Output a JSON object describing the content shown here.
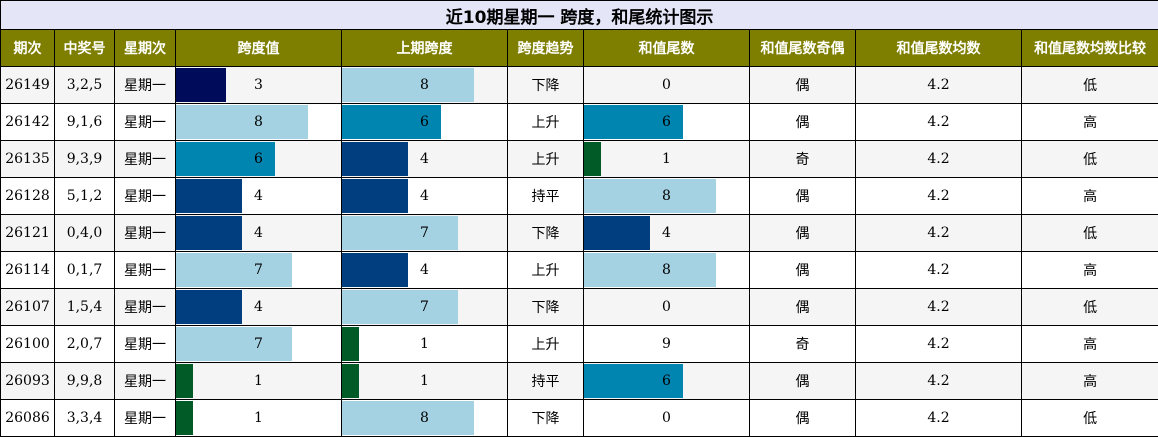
{
  "title": "近10期星期一 跨度，和尾统计图示",
  "headers": [
    "期次",
    "中奖号",
    "星期次",
    "跨度值",
    "上期跨度",
    "跨度趋势",
    "和值尾数",
    "和值尾数奇偶",
    "和值尾数均数",
    "和值尾数均数比较"
  ],
  "chart_data": {
    "type": "table",
    "title": "近10期星期一 跨度，和尾统计图示",
    "bar_scale_max": 10,
    "colors": {
      "header_bg": "#7e7e00",
      "title_bg": "#e4e6f8",
      "bar_by_value": {
        "1": "#005b26",
        "3": "#000c5a",
        "4": "#003e80",
        "6": "#0084b0",
        "7": "#a4d2e2",
        "8": "#a4d2e2"
      }
    },
    "rows": [
      {
        "issue": "26149",
        "numbers": "3,2,5",
        "weekday": "星期一",
        "span": 3,
        "prev_span": 8,
        "trend": "下降",
        "sum_tail": 0,
        "parity": "偶",
        "avg": "4.2",
        "compare": "低"
      },
      {
        "issue": "26142",
        "numbers": "9,1,6",
        "weekday": "星期一",
        "span": 8,
        "prev_span": 6,
        "trend": "上升",
        "sum_tail": 6,
        "parity": "偶",
        "avg": "4.2",
        "compare": "高"
      },
      {
        "issue": "26135",
        "numbers": "9,3,9",
        "weekday": "星期一",
        "span": 6,
        "prev_span": 4,
        "trend": "上升",
        "sum_tail": 1,
        "parity": "奇",
        "avg": "4.2",
        "compare": "低"
      },
      {
        "issue": "26128",
        "numbers": "5,1,2",
        "weekday": "星期一",
        "span": 4,
        "prev_span": 4,
        "trend": "持平",
        "sum_tail": 8,
        "parity": "偶",
        "avg": "4.2",
        "compare": "高"
      },
      {
        "issue": "26121",
        "numbers": "0,4,0",
        "weekday": "星期一",
        "span": 4,
        "prev_span": 7,
        "trend": "下降",
        "sum_tail": 4,
        "parity": "偶",
        "avg": "4.2",
        "compare": "低"
      },
      {
        "issue": "26114",
        "numbers": "0,1,7",
        "weekday": "星期一",
        "span": 7,
        "prev_span": 4,
        "trend": "上升",
        "sum_tail": 8,
        "parity": "偶",
        "avg": "4.2",
        "compare": "高"
      },
      {
        "issue": "26107",
        "numbers": "1,5,4",
        "weekday": "星期一",
        "span": 4,
        "prev_span": 7,
        "trend": "下降",
        "sum_tail": 0,
        "parity": "偶",
        "avg": "4.2",
        "compare": "低"
      },
      {
        "issue": "26100",
        "numbers": "2,0,7",
        "weekday": "星期一",
        "span": 7,
        "prev_span": 1,
        "trend": "上升",
        "sum_tail": 9,
        "parity": "奇",
        "avg": "4.2",
        "compare": "高"
      },
      {
        "issue": "26093",
        "numbers": "9,9,8",
        "weekday": "星期一",
        "span": 1,
        "prev_span": 1,
        "trend": "持平",
        "sum_tail": 6,
        "parity": "偶",
        "avg": "4.2",
        "compare": "高"
      },
      {
        "issue": "26086",
        "numbers": "3,3,4",
        "weekday": "星期一",
        "span": 1,
        "prev_span": 8,
        "trend": "下降",
        "sum_tail": 0,
        "parity": "偶",
        "avg": "4.2",
        "compare": "低"
      }
    ]
  }
}
